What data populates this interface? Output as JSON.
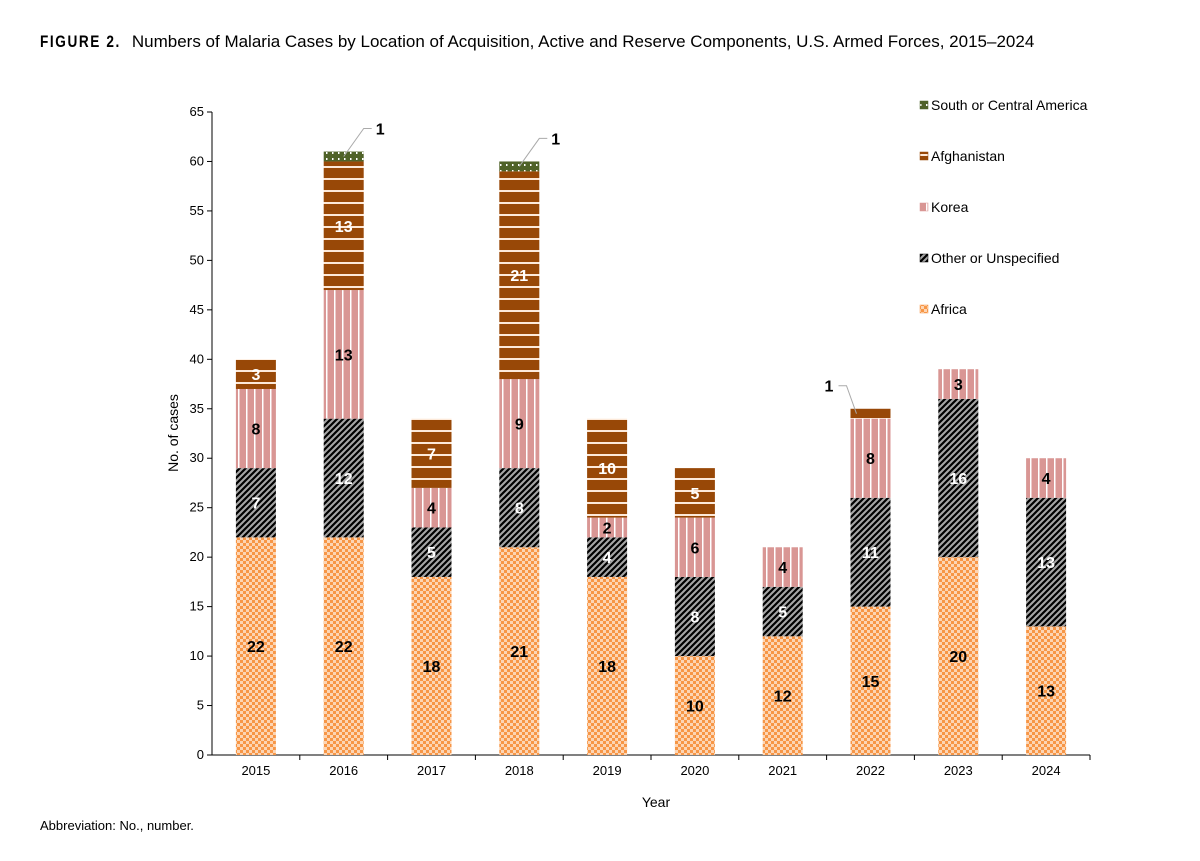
{
  "figure_label": "FIGURE 2.",
  "footnote": "Abbreviation: No., number.",
  "chart_data": {
    "type": "bar",
    "stacked": true,
    "title": "Numbers of Malaria Cases by Location of Acquisition, Active and Reserve Components, U.S. Armed Forces, 2015–2024",
    "xlabel": "Year",
    "ylabel": "No. of cases",
    "ylim": [
      0,
      65
    ],
    "yticks": [
      0,
      5,
      10,
      15,
      20,
      25,
      30,
      35,
      40,
      45,
      50,
      55,
      60,
      65
    ],
    "grid": false,
    "legend_placement": "top-right",
    "categories": [
      "2015",
      "2016",
      "2017",
      "2018",
      "2019",
      "2020",
      "2021",
      "2022",
      "2023",
      "2024"
    ],
    "series": [
      {
        "name": "Africa",
        "color": "#f79646",
        "pattern": "checker",
        "label_color": "#000000",
        "values": [
          22,
          22,
          18,
          21,
          18,
          10,
          12,
          15,
          20,
          13
        ]
      },
      {
        "name": "Other or Unspecified",
        "color": "#000000",
        "pattern": "diagonal-weave",
        "label_color": "#ffffff",
        "values": [
          7,
          12,
          5,
          8,
          4,
          8,
          5,
          11,
          16,
          13
        ]
      },
      {
        "name": "Korea",
        "color": "#d99694",
        "pattern": "vertical-stripes",
        "label_color": "#000000",
        "values": [
          8,
          13,
          4,
          9,
          2,
          6,
          4,
          8,
          3,
          4
        ]
      },
      {
        "name": "Afghanistan",
        "color": "#984807",
        "pattern": "horizontal-stripes",
        "label_color": "#ffffff",
        "values": [
          3,
          13,
          7,
          21,
          10,
          5,
          0,
          1,
          0,
          0
        ]
      },
      {
        "name": "South or Central America",
        "color": "#4f6228",
        "pattern": "dots",
        "label_color": "#000000",
        "values": [
          0,
          1,
          0,
          1,
          0,
          0,
          0,
          0,
          0,
          0
        ]
      }
    ],
    "callouts": [
      {
        "category": "2016",
        "series": "South or Central America",
        "text": "1",
        "side": "right"
      },
      {
        "category": "2018",
        "series": "South or Central America",
        "text": "1",
        "side": "right"
      },
      {
        "category": "2022",
        "series": "Afghanistan",
        "text": "1",
        "side": "left"
      }
    ]
  }
}
